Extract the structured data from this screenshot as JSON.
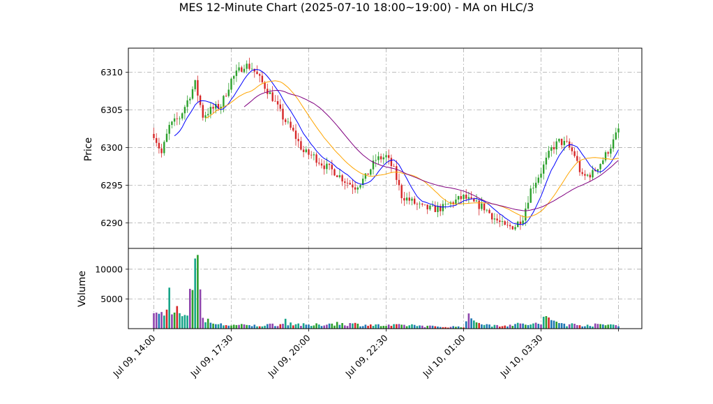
{
  "chart_data": {
    "type": "candlestick",
    "title": "MES 12-Minute Chart (2025-07-10 18:00~19:00) - MA on HLC/3",
    "grid": true,
    "price_panel": {
      "ylabel": "Price",
      "ylim": [
        6286.6,
        6313.2
      ],
      "yticks": [
        6290,
        6295,
        6300,
        6305,
        6310
      ],
      "up_color": "#2ca02c",
      "down_color": "#d62728",
      "ohlc_anchors": [
        [
          0,
          6301.8
        ],
        [
          3,
          6299.2
        ],
        [
          6,
          6302.8
        ],
        [
          10,
          6304.0
        ],
        [
          13,
          6306.2
        ],
        [
          16,
          6308.5
        ],
        [
          19,
          6304.2
        ],
        [
          22,
          6305.0
        ],
        [
          26,
          6305.6
        ],
        [
          30,
          6309.0
        ],
        [
          35,
          6311.0
        ],
        [
          38,
          6310.6
        ],
        [
          42,
          6308.6
        ],
        [
          46,
          6306.6
        ],
        [
          50,
          6304.0
        ],
        [
          54,
          6302.0
        ],
        [
          58,
          6299.4
        ],
        [
          62,
          6298.8
        ],
        [
          66,
          6297.6
        ],
        [
          70,
          6296.8
        ],
        [
          74,
          6295.6
        ],
        [
          78,
          6294.8
        ],
        [
          82,
          6296.0
        ],
        [
          86,
          6298.4
        ],
        [
          90,
          6298.8
        ],
        [
          93,
          6297.0
        ],
        [
          96,
          6293.6
        ],
        [
          100,
          6292.8
        ],
        [
          104,
          6292.0
        ],
        [
          108,
          6291.8
        ],
        [
          112,
          6292.0
        ],
        [
          116,
          6292.8
        ],
        [
          120,
          6293.4
        ],
        [
          124,
          6292.6
        ],
        [
          128,
          6292.0
        ],
        [
          132,
          6290.6
        ],
        [
          136,
          6289.4
        ],
        [
          140,
          6289.6
        ],
        [
          143,
          6290.8
        ],
        [
          146,
          6294.4
        ],
        [
          150,
          6296.8
        ],
        [
          154,
          6299.8
        ],
        [
          157,
          6300.8
        ],
        [
          160,
          6300.4
        ],
        [
          163,
          6299.0
        ],
        [
          166,
          6296.0
        ],
        [
          170,
          6296.6
        ],
        [
          174,
          6298.4
        ],
        [
          178,
          6300.8
        ],
        [
          180,
          6302.4
        ]
      ]
    },
    "volume_panel": {
      "ylabel": "Volume",
      "ylim": [
        0,
        13500
      ],
      "yticks": [
        5000,
        10000
      ],
      "bar_colors": [
        "#1f77b4",
        "#d62728",
        "#2ca02c",
        "#17a589",
        "#8e44ad"
      ],
      "volume_anchors": [
        [
          0,
          2600
        ],
        [
          1,
          2700
        ],
        [
          2,
          2500
        ],
        [
          3,
          2800
        ],
        [
          4,
          2200
        ],
        [
          5,
          3200
        ],
        [
          6,
          6900
        ],
        [
          7,
          2400
        ],
        [
          8,
          2700
        ],
        [
          9,
          3800
        ],
        [
          10,
          2600
        ],
        [
          11,
          2100
        ],
        [
          12,
          2300
        ],
        [
          13,
          2200
        ],
        [
          14,
          6700
        ],
        [
          15,
          6500
        ],
        [
          16,
          11800
        ],
        [
          17,
          12400
        ],
        [
          18,
          6600
        ],
        [
          19,
          1600
        ],
        [
          20,
          1300
        ],
        [
          21,
          1200
        ],
        [
          22,
          900
        ],
        [
          23,
          1100
        ],
        [
          24,
          800
        ],
        [
          25,
          700
        ],
        [
          30,
          600
        ],
        [
          40,
          500
        ],
        [
          50,
          800
        ],
        [
          51,
          1400
        ],
        [
          52,
          1000
        ],
        [
          60,
          500
        ],
        [
          70,
          900
        ],
        [
          80,
          700
        ],
        [
          90,
          500
        ],
        [
          100,
          600
        ],
        [
          110,
          300
        ],
        [
          120,
          350
        ],
        [
          122,
          1800
        ],
        [
          130,
          500
        ],
        [
          140,
          700
        ],
        [
          150,
          800
        ],
        [
          150.5,
          1800
        ],
        [
          160,
          700
        ],
        [
          170,
          600
        ],
        [
          180,
          700
        ]
      ]
    },
    "x_axis": {
      "bar_count": 181,
      "ticks": [
        {
          "index": 0,
          "label": "Jul 09, 14:00"
        },
        {
          "index": 30,
          "label": "Jul 09, 17:30"
        },
        {
          "index": 60,
          "label": "Jul 09, 20:00"
        },
        {
          "index": 90,
          "label": "Jul 09, 22:30"
        },
        {
          "index": 120,
          "label": "Jul 10, 01:00"
        },
        {
          "index": 150,
          "label": "Jul 10, 03:30"
        },
        {
          "index": 180,
          "label": ""
        }
      ]
    },
    "moving_averages": [
      {
        "color": "#0000ff",
        "period": 9
      },
      {
        "color": "#ffa500",
        "period": 21
      },
      {
        "color": "#800080",
        "period": 36
      }
    ]
  }
}
